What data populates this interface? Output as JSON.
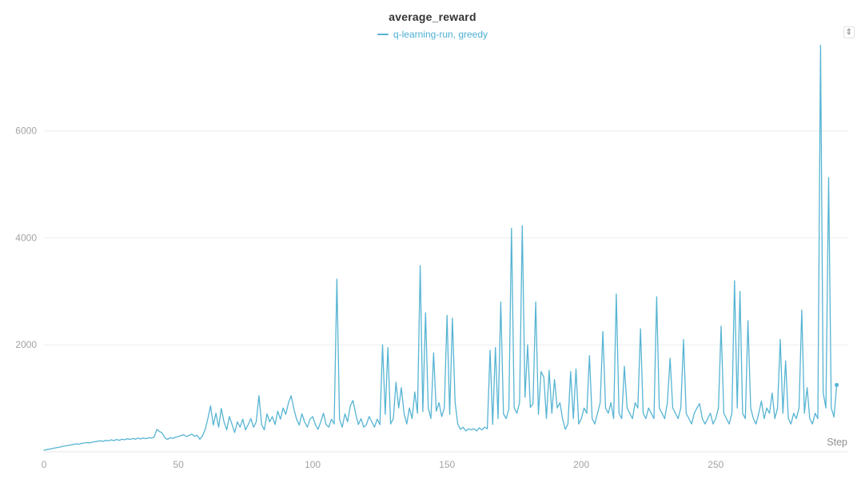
{
  "controls": {
    "resize_icon_glyph": "⇕"
  },
  "colors": {
    "line": "#56b4d3",
    "legend_text": "#4bafd2",
    "tick_text": "#a3a3a3",
    "grid": "#ececec",
    "axis_line": "#e4e4e4",
    "title_text": "#333333"
  },
  "chart_data": {
    "type": "line",
    "title": "average_reward",
    "xlabel": "Step",
    "ylabel": "",
    "xlim": [
      0,
      299
    ],
    "ylim": [
      0,
      7700
    ],
    "x_ticks": [
      0,
      50,
      100,
      150,
      200,
      250
    ],
    "y_ticks": [
      2000,
      4000,
      6000
    ],
    "grid": "horizontal",
    "legend_position": "top-center",
    "series": [
      {
        "name": "q-learning-run, greedy",
        "color": "#56b4d3",
        "x_start": 0,
        "x_step": 1,
        "end_marker": true,
        "values": [
          30,
          40,
          50,
          60,
          70,
          80,
          90,
          100,
          110,
          120,
          128,
          138,
          148,
          142,
          158,
          165,
          172,
          168,
          180,
          190,
          198,
          208,
          195,
          215,
          205,
          225,
          210,
          230,
          215,
          235,
          225,
          245,
          230,
          250,
          235,
          255,
          240,
          260,
          245,
          265,
          255,
          275,
          420,
          380,
          350,
          260,
          230,
          265,
          250,
          275,
          285,
          305,
          320,
          285,
          305,
          330,
          290,
          310,
          235,
          300,
          420,
          620,
          860,
          500,
          720,
          460,
          810,
          560,
          410,
          660,
          510,
          360,
          560,
          460,
          610,
          410,
          510,
          620,
          460,
          560,
          1050,
          510,
          410,
          710,
          560,
          660,
          510,
          760,
          610,
          820,
          700,
          920,
          1050,
          800,
          610,
          500,
          710,
          560,
          460,
          610,
          660,
          510,
          420,
          560,
          720,
          510,
          460,
          610,
          520,
          3230,
          610,
          460,
          710,
          560,
          860,
          960,
          710,
          510,
          620,
          460,
          510,
          660,
          560,
          460,
          610,
          510,
          2000,
          700,
          1950,
          520,
          620,
          1300,
          820,
          1200,
          720,
          520,
          820,
          620,
          1120,
          720,
          3480,
          750,
          2600,
          820,
          620,
          1850,
          760,
          920,
          660,
          820,
          2550,
          700,
          2500,
          920,
          520,
          420,
          460,
          390,
          430,
          410,
          430,
          390,
          450,
          410,
          460,
          430,
          1900,
          510,
          1950,
          620,
          2800,
          710,
          620,
          800,
          4180,
          820,
          720,
          920,
          4230,
          1020,
          2000,
          830,
          900,
          2800,
          700,
          1500,
          1400,
          620,
          1520,
          720,
          1350,
          820,
          920,
          620,
          420,
          520,
          1500,
          620,
          1550,
          520,
          620,
          820,
          720,
          1800,
          620,
          520,
          720,
          920,
          2250,
          820,
          720,
          920,
          620,
          2950,
          720,
          620,
          1600,
          820,
          720,
          620,
          920,
          820,
          2300,
          720,
          620,
          820,
          720,
          620,
          2900,
          820,
          720,
          620,
          920,
          1750,
          820,
          720,
          620,
          820,
          2100,
          720,
          620,
          520,
          720,
          820,
          900,
          620,
          520,
          620,
          720,
          520,
          620,
          820,
          2350,
          720,
          620,
          520,
          720,
          3200,
          820,
          3000,
          720,
          620,
          2450,
          820,
          620,
          520,
          720,
          950,
          620,
          820,
          720,
          1100,
          620,
          820,
          2100,
          720,
          1700,
          620,
          520,
          720,
          620,
          820,
          2650,
          720,
          1200,
          620,
          520,
          720,
          620,
          7600,
          1100,
          820,
          5130,
          820,
          650,
          1250
        ]
      }
    ]
  }
}
